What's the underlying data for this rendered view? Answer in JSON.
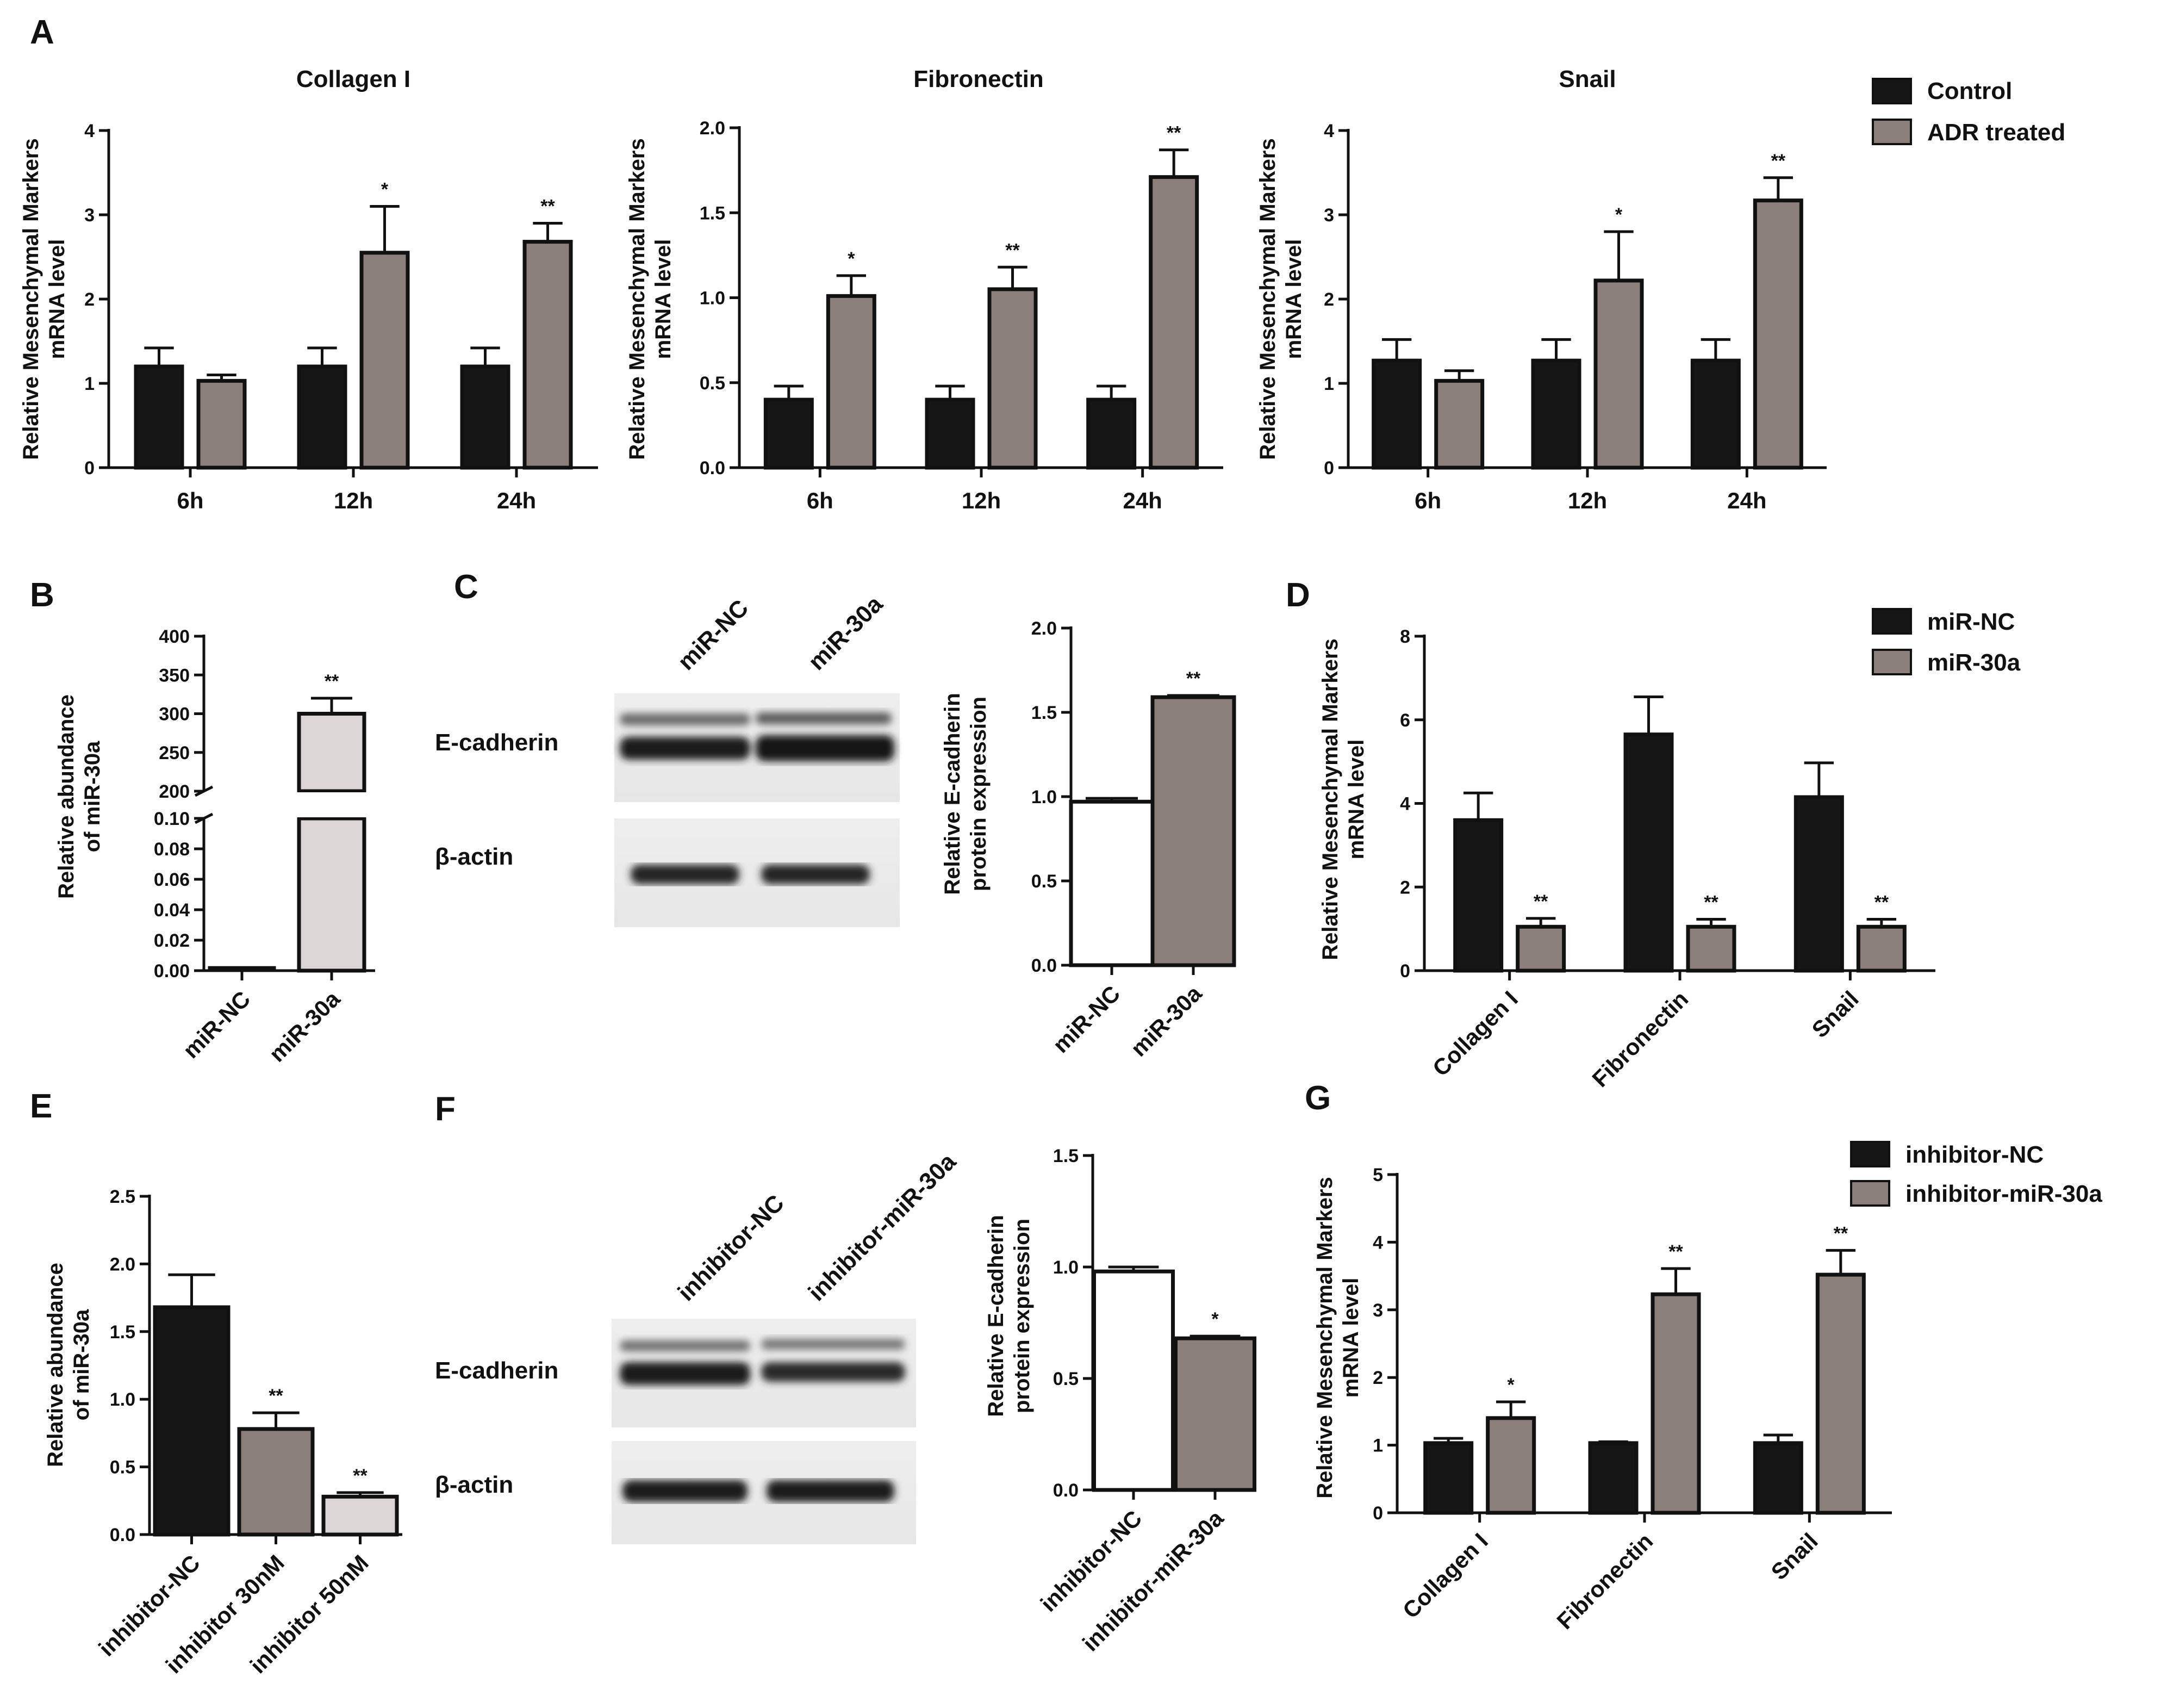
{
  "colors": {
    "control": "#161616",
    "treated": "#8a7f7a",
    "light": "#dcd5d6",
    "white": "#ffffff",
    "axis": "#111111"
  },
  "panel_letters": [
    "A",
    "B",
    "C",
    "D",
    "E",
    "F",
    "G"
  ],
  "chart_data": [
    {
      "id": "A1",
      "type": "bar",
      "title": "Collagen I",
      "ylabel_lines": [
        "Relative Mesenchymal Markers",
        "mRNA level"
      ],
      "categories": [
        "6h",
        "12h",
        "24h"
      ],
      "ylim": [
        0,
        4
      ],
      "ticks": [
        "0",
        "1",
        "2",
        "3",
        "4"
      ],
      "tick_values": [
        0,
        1,
        2,
        3,
        4
      ],
      "series": [
        {
          "name": "Control",
          "color": "control",
          "values": [
            1.2,
            1.2,
            1.2
          ],
          "errors": [
            0.22,
            0.22,
            0.22
          ],
          "sig": [
            "",
            "",
            ""
          ]
        },
        {
          "name": "ADR treated",
          "color": "treated",
          "values": [
            1.03,
            2.55,
            2.68
          ],
          "errors": [
            0.07,
            0.55,
            0.22
          ],
          "sig": [
            "",
            "*",
            "**"
          ]
        }
      ]
    },
    {
      "id": "A2",
      "type": "bar",
      "title": "Fibronectin",
      "ylabel_lines": [
        "Relative Mesenchymal Markers",
        "mRNA level"
      ],
      "categories": [
        "6h",
        "12h",
        "24h"
      ],
      "ylim": [
        0,
        2.0
      ],
      "ticks": [
        "0.0",
        "0.5",
        "1.0",
        "1.5",
        "2.0"
      ],
      "tick_values": [
        0,
        0.5,
        1.0,
        1.5,
        2.0
      ],
      "series": [
        {
          "name": "Control",
          "color": "control",
          "values": [
            0.4,
            0.4,
            0.4
          ],
          "errors": [
            0.08,
            0.08,
            0.08
          ],
          "sig": [
            "",
            "",
            ""
          ]
        },
        {
          "name": "ADR treated",
          "color": "treated",
          "values": [
            1.01,
            1.05,
            1.71
          ],
          "errors": [
            0.12,
            0.13,
            0.16
          ],
          "sig": [
            "*",
            "**",
            "**"
          ]
        }
      ]
    },
    {
      "id": "A3",
      "type": "bar",
      "title": "Snail",
      "ylabel_lines": [
        "Relative Mesenchymal Markers",
        "mRNA level"
      ],
      "categories": [
        "6h",
        "12h",
        "24h"
      ],
      "ylim": [
        0,
        4
      ],
      "ticks": [
        "0",
        "1",
        "2",
        "3",
        "4"
      ],
      "tick_values": [
        0,
        1,
        2,
        3,
        4
      ],
      "series": [
        {
          "name": "Control",
          "color": "control",
          "values": [
            1.27,
            1.27,
            1.27
          ],
          "errors": [
            0.25,
            0.25,
            0.25
          ],
          "sig": [
            "",
            "",
            ""
          ]
        },
        {
          "name": "ADR treated",
          "color": "treated",
          "values": [
            1.03,
            2.22,
            3.17
          ],
          "errors": [
            0.12,
            0.58,
            0.27
          ],
          "sig": [
            "",
            "*",
            "**"
          ]
        }
      ],
      "legend": [
        "Control",
        "ADR treated"
      ]
    },
    {
      "id": "B",
      "type": "bar",
      "broken_axis": true,
      "ylabel_lines": [
        "Relative abundance",
        "of miR-30a"
      ],
      "categories": [
        "miR-NC",
        "miR-30a"
      ],
      "upper_ticks": [
        "200",
        "250",
        "300",
        "350",
        "400"
      ],
      "upper_tick_values": [
        200,
        250,
        300,
        350,
        400
      ],
      "lower_ticks": [
        "0.00",
        "0.02",
        "0.04",
        "0.06",
        "0.08",
        "0.10"
      ],
      "lower_tick_values": [
        0,
        0.02,
        0.04,
        0.06,
        0.08,
        0.1
      ],
      "series": [
        {
          "name": "miR-30a abundance",
          "values": [
            0.001,
            300
          ],
          "errors": [
            0,
            20
          ],
          "colors": [
            "control",
            "light"
          ],
          "sig": [
            "",
            "**"
          ]
        }
      ]
    },
    {
      "id": "C",
      "type": "bar",
      "ylabel_lines": [
        "Relative E-cadherin",
        "protein expression"
      ],
      "categories": [
        "miR-NC",
        "miR-30a"
      ],
      "ylim": [
        0,
        2.0
      ],
      "ticks": [
        "0.0",
        "0.5",
        "1.0",
        "1.5",
        "2.0"
      ],
      "tick_values": [
        0,
        0.5,
        1.0,
        1.5,
        2.0
      ],
      "series": [
        {
          "name": "E-cadherin",
          "values": [
            0.97,
            1.59
          ],
          "errors": [
            0.02,
            0.01
          ],
          "colors": [
            "white",
            "treated"
          ],
          "sig": [
            "",
            "**"
          ]
        }
      ]
    },
    {
      "id": "D",
      "type": "bar",
      "ylabel_lines": [
        "Relative Mesenchymal Markers",
        "mRNA level"
      ],
      "categories": [
        "Collagen I",
        "Fibronectin",
        "Snail"
      ],
      "ylim": [
        0,
        8
      ],
      "ticks": [
        "0",
        "2",
        "4",
        "6",
        "8"
      ],
      "tick_values": [
        0,
        2,
        4,
        6,
        8
      ],
      "series": [
        {
          "name": "miR-NC",
          "color": "control",
          "values": [
            3.6,
            5.65,
            4.15
          ],
          "errors": [
            0.65,
            0.9,
            0.82
          ],
          "sig": [
            "",
            "",
            ""
          ]
        },
        {
          "name": "miR-30a",
          "color": "treated",
          "values": [
            1.05,
            1.05,
            1.05
          ],
          "errors": [
            0.2,
            0.18,
            0.18
          ],
          "sig": [
            "**",
            "**",
            "**"
          ]
        }
      ],
      "legend": [
        "miR-NC",
        "miR-30a"
      ]
    },
    {
      "id": "E",
      "type": "bar",
      "ylabel_lines": [
        "Relative abundance",
        "of miR-30a"
      ],
      "categories": [
        "inhibitor-NC",
        "inhibitor 30nM",
        "inhibitor 50nM"
      ],
      "ylim": [
        0,
        2.5
      ],
      "ticks": [
        "0.0",
        "0.5",
        "1.0",
        "1.5",
        "2.0",
        "2.5"
      ],
      "tick_values": [
        0,
        0.5,
        1.0,
        1.5,
        2.0,
        2.5
      ],
      "series": [
        {
          "name": "miR-30a abundance",
          "values": [
            1.68,
            0.78,
            0.28
          ],
          "errors": [
            0.24,
            0.12,
            0.03
          ],
          "colors": [
            "control",
            "treated",
            "light"
          ],
          "sig": [
            "",
            "**",
            "**"
          ]
        }
      ]
    },
    {
      "id": "F",
      "type": "bar",
      "ylabel_lines": [
        "Relative E-cadherin",
        "protein expression"
      ],
      "categories": [
        "inhibitor-NC",
        "inhibitor-miR-30a"
      ],
      "ylim": [
        0,
        1.5
      ],
      "ticks": [
        "0.0",
        "0.5",
        "1.0",
        "1.5"
      ],
      "tick_values": [
        0,
        0.5,
        1.0,
        1.5
      ],
      "series": [
        {
          "name": "E-cadherin",
          "values": [
            0.98,
            0.68
          ],
          "errors": [
            0.02,
            0.01
          ],
          "colors": [
            "white",
            "treated"
          ],
          "sig": [
            "",
            "*"
          ]
        }
      ]
    },
    {
      "id": "G",
      "type": "bar",
      "ylabel_lines": [
        "Relative Mesenchymal Markers",
        "mRNA level"
      ],
      "categories": [
        "Collagen I",
        "Fibronectin",
        "Snail"
      ],
      "ylim": [
        0,
        5
      ],
      "ticks": [
        "0",
        "1",
        "2",
        "3",
        "4",
        "5"
      ],
      "tick_values": [
        0,
        1,
        2,
        3,
        4,
        5
      ],
      "series": [
        {
          "name": "inhibitor-NC",
          "color": "control",
          "values": [
            1.03,
            1.03,
            1.03
          ],
          "errors": [
            0.07,
            0.02,
            0.12
          ],
          "sig": [
            "",
            "",
            ""
          ]
        },
        {
          "name": "inhibitor-miR-30a",
          "color": "treated",
          "values": [
            1.4,
            3.23,
            3.52
          ],
          "errors": [
            0.24,
            0.38,
            0.36
          ],
          "sig": [
            "*",
            "**",
            "**"
          ]
        }
      ],
      "legend": [
        "inhibitor-NC",
        "inhibitor-miR-30a"
      ]
    }
  ],
  "blots": {
    "C": {
      "lane_labels": [
        "miR-NC",
        "miR-30a"
      ],
      "row_labels": [
        "E-cadherin",
        "β-actin"
      ]
    },
    "F": {
      "lane_labels": [
        "inhibitor-NC",
        "inhibitor-miR-30a"
      ],
      "row_labels": [
        "E-cadherin",
        "β-actin"
      ]
    }
  }
}
